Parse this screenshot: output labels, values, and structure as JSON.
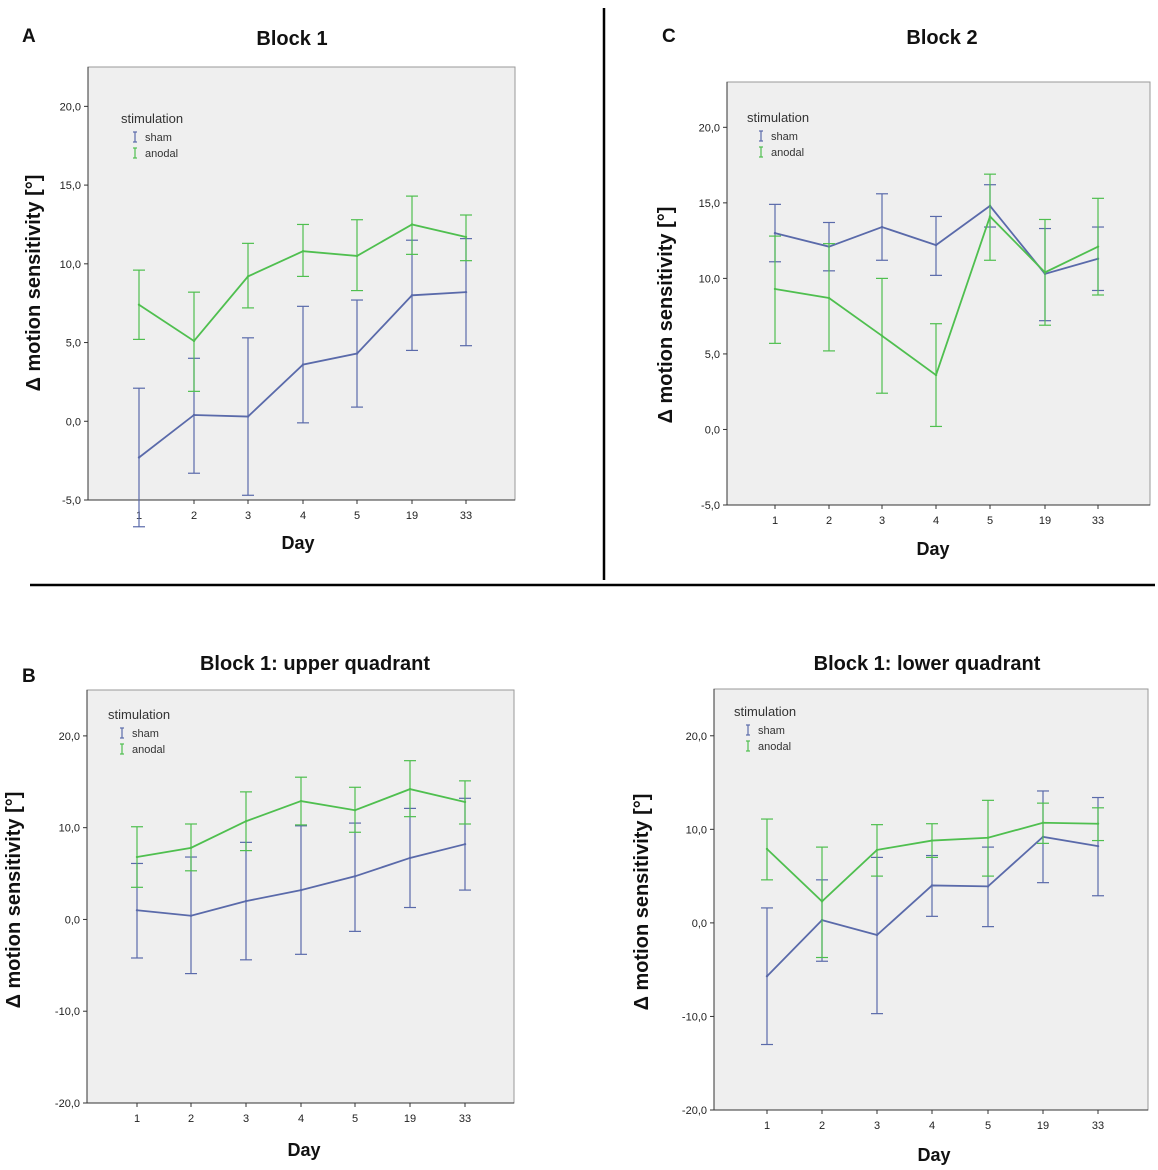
{
  "colors": {
    "sham": "#5a6aaa",
    "anodal": "#4fbf4f"
  },
  "legend": {
    "title": "stimulation",
    "items": [
      "sham",
      "anodal"
    ]
  },
  "chart_data": [
    {
      "panel": "A",
      "type": "line",
      "title": "Block 1",
      "xlabel": "Day",
      "ylabel": "Δ motion sensitivity [°]",
      "categories": [
        "1",
        "2",
        "3",
        "4",
        "5",
        "19",
        "33"
      ],
      "ylim": [
        -5,
        22.5
      ],
      "yticks": [
        -5,
        0,
        5,
        10,
        15,
        20
      ],
      "ytick_labels": [
        "-5,0",
        "0,0",
        "5,0",
        "10,0",
        "15,0",
        "20,0"
      ],
      "series": [
        {
          "name": "sham",
          "values": [
            -2.3,
            0.4,
            0.3,
            3.6,
            4.3,
            8.0,
            8.2
          ],
          "lower": [
            -6.7,
            -3.3,
            -4.7,
            -0.1,
            0.9,
            4.5,
            4.8
          ],
          "upper": [
            2.1,
            4.0,
            5.3,
            7.3,
            7.7,
            11.5,
            11.6
          ]
        },
        {
          "name": "anodal",
          "values": [
            7.4,
            5.1,
            9.2,
            10.8,
            10.5,
            12.5,
            11.7
          ],
          "lower": [
            5.2,
            1.9,
            7.2,
            9.2,
            8.3,
            10.6,
            10.2
          ],
          "upper": [
            9.6,
            8.2,
            11.3,
            12.5,
            12.8,
            14.3,
            13.1
          ]
        }
      ]
    },
    {
      "panel": "C",
      "type": "line",
      "title": "Block 2",
      "xlabel": "Day",
      "ylabel": "Δ motion sensitivity [°]",
      "categories": [
        "1",
        "2",
        "3",
        "4",
        "5",
        "19",
        "33"
      ],
      "ylim": [
        -5,
        23
      ],
      "yticks": [
        -5,
        0,
        5,
        10,
        15,
        20
      ],
      "ytick_labels": [
        "-5,0",
        "0,0",
        "5,0",
        "10,0",
        "15,0",
        "20,0"
      ],
      "series": [
        {
          "name": "sham",
          "values": [
            13.0,
            12.1,
            13.4,
            12.2,
            14.8,
            10.3,
            11.3
          ],
          "lower": [
            11.1,
            10.5,
            11.2,
            10.2,
            13.4,
            7.2,
            9.2
          ],
          "upper": [
            14.9,
            13.7,
            15.6,
            14.1,
            16.2,
            13.3,
            13.4
          ]
        },
        {
          "name": "anodal",
          "values": [
            9.3,
            8.7,
            6.2,
            3.6,
            14.1,
            10.4,
            12.1
          ],
          "lower": [
            5.7,
            5.2,
            2.4,
            0.2,
            11.2,
            6.9,
            8.9
          ],
          "upper": [
            12.8,
            12.3,
            10.0,
            7.0,
            16.9,
            13.9,
            15.3
          ]
        }
      ]
    },
    {
      "panel": "B",
      "type": "line",
      "title": "Block 1: upper quadrant",
      "xlabel": "Day",
      "ylabel": "Δ motion sensitivity [°]",
      "categories": [
        "1",
        "2",
        "3",
        "4",
        "5",
        "19",
        "33"
      ],
      "ylim": [
        -20,
        25
      ],
      "yticks": [
        -20,
        -10,
        0,
        10,
        20
      ],
      "ytick_labels": [
        "-20,0",
        "-10,0",
        "0,0",
        "10,0",
        "20,0"
      ],
      "series": [
        {
          "name": "sham",
          "values": [
            1.0,
            0.4,
            2.0,
            3.2,
            4.7,
            6.7,
            8.2
          ],
          "lower": [
            -4.2,
            -5.9,
            -4.4,
            -3.8,
            -1.3,
            1.3,
            3.2
          ],
          "upper": [
            6.1,
            6.8,
            8.4,
            10.2,
            10.5,
            12.1,
            13.2
          ]
        },
        {
          "name": "anodal",
          "values": [
            6.8,
            7.8,
            10.7,
            12.9,
            11.9,
            14.2,
            12.8
          ],
          "lower": [
            3.5,
            5.3,
            7.5,
            10.3,
            9.5,
            11.2,
            10.4
          ],
          "upper": [
            10.1,
            10.4,
            13.9,
            15.5,
            14.4,
            17.3,
            15.1
          ]
        }
      ]
    },
    {
      "panel": "B",
      "type": "line",
      "title": "Block 1: lower quadrant",
      "xlabel": "Day",
      "ylabel": "Δ motion sensitivity [°]",
      "categories": [
        "1",
        "2",
        "3",
        "4",
        "5",
        "19",
        "33"
      ],
      "ylim": [
        -20,
        25
      ],
      "yticks": [
        -20,
        -10,
        0,
        10,
        20
      ],
      "ytick_labels": [
        "-20,0",
        "-10,0",
        "0,0",
        "10,0",
        "20,0"
      ],
      "series": [
        {
          "name": "sham",
          "values": [
            -5.7,
            0.3,
            -1.3,
            4.0,
            3.9,
            9.2,
            8.2
          ],
          "lower": [
            -13.0,
            -4.1,
            -9.7,
            0.7,
            -0.4,
            4.3,
            2.9
          ],
          "upper": [
            1.6,
            4.6,
            7.0,
            7.2,
            8.1,
            14.1,
            13.4
          ]
        },
        {
          "name": "anodal",
          "values": [
            7.9,
            2.3,
            7.8,
            8.8,
            9.1,
            10.7,
            10.6
          ],
          "lower": [
            4.6,
            -3.7,
            5.0,
            7.0,
            5.0,
            8.5,
            8.8
          ],
          "upper": [
            11.1,
            8.1,
            10.5,
            10.6,
            13.1,
            12.8,
            12.3
          ]
        }
      ]
    }
  ]
}
